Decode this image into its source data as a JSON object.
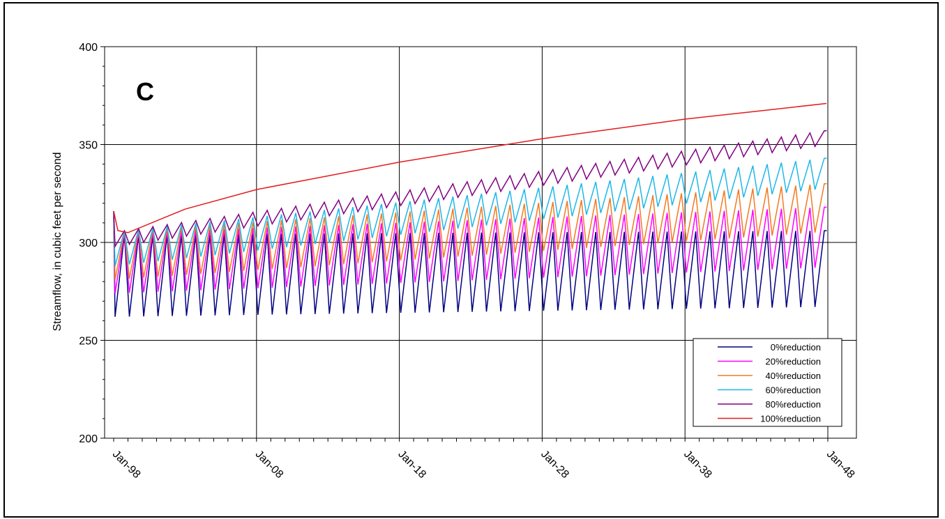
{
  "chart_data": {
    "type": "line",
    "panel_label": "C",
    "title": "",
    "xlabel": "",
    "ylabel": "Streamflow, in cubic feet per second",
    "ylim": [
      200,
      400
    ],
    "xlim": [
      "1998-01",
      "2047-12"
    ],
    "y_ticks": [
      "200",
      "250",
      "300",
      "350",
      "400"
    ],
    "x_tick_labels": [
      "Jan-98",
      "Jan-08",
      "Jan-18",
      "Jan-28",
      "Jan-38",
      "Jan-48"
    ],
    "x_tick_dates": [
      "1998-01",
      "2008-01",
      "2018-01",
      "2028-01",
      "2038-01",
      "2048-01"
    ],
    "grid": true,
    "legend_position": "bottom-right",
    "series": [
      {
        "name": "0%reduction",
        "color": "#000080",
        "peaks": [
          [
            1998.5,
            304
          ],
          [
            2047.5,
            306
          ]
        ],
        "troughs": [
          [
            1999.0,
            262
          ],
          [
            2047.0,
            267
          ]
        ]
      },
      {
        "name": "20%reduction",
        "color": "#FF00FF",
        "peaks": [
          [
            1998.5,
            305
          ],
          [
            2047.5,
            318
          ]
        ],
        "troughs": [
          [
            1999.0,
            274
          ],
          [
            2047.0,
            287
          ]
        ]
      },
      {
        "name": "40%reduction",
        "color": "#F47920",
        "peaks": [
          [
            1998.5,
            306
          ],
          [
            2047.5,
            330
          ]
        ],
        "troughs": [
          [
            1999.0,
            281
          ],
          [
            2047.0,
            305
          ]
        ]
      },
      {
        "name": "60%reduction",
        "color": "#1EB7E8",
        "peaks": [
          [
            1998.5,
            306
          ],
          [
            2047.5,
            343
          ]
        ],
        "troughs": [
          [
            1999.0,
            288
          ],
          [
            2047.0,
            327
          ]
        ]
      },
      {
        "name": "80%reduction",
        "color": "#800080",
        "peaks": [
          [
            1998.5,
            306
          ],
          [
            2047.5,
            357
          ]
        ],
        "troughs": [
          [
            1999.0,
            298
          ],
          [
            2047.0,
            349
          ]
        ]
      },
      {
        "name": "100%reduction",
        "color": "#E41A1C",
        "start": 316,
        "points": [
          [
            1998.0,
            316
          ],
          [
            1998.3,
            306
          ],
          [
            1999.0,
            305
          ],
          [
            2003.0,
            317
          ],
          [
            2008.0,
            327
          ],
          [
            2013.0,
            334
          ],
          [
            2018.0,
            341
          ],
          [
            2023.0,
            347
          ],
          [
            2028.0,
            353
          ],
          [
            2033.0,
            358
          ],
          [
            2038.0,
            363
          ],
          [
            2043.0,
            367
          ],
          [
            2047.9,
            371
          ]
        ]
      }
    ]
  }
}
